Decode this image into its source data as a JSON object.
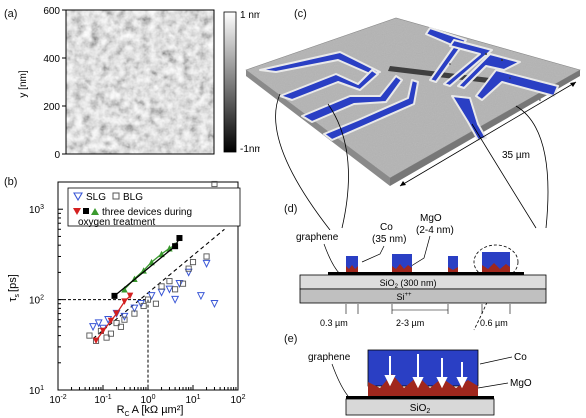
{
  "panels": {
    "a": {
      "label": "(a)",
      "ylabel": "y [nm]",
      "yticks": [
        "600",
        "400",
        "200",
        "0"
      ],
      "colorbar": {
        "top": "1 nm",
        "bottom": "-1nm"
      }
    },
    "b": {
      "label": "(b)",
      "ylabel_main": "τ",
      "ylabel_sub": "s",
      "ylabel_unit": "[ps]",
      "xlabel_main": "R",
      "xlabel_sub": "C",
      "xlabel_rest": "A [kΩ µm²]",
      "ytick_labels": [
        {
          "base": "10",
          "exp": "1"
        },
        {
          "base": "10",
          "exp": "2"
        },
        {
          "base": "10",
          "exp": "3"
        }
      ],
      "xtick_labels": [
        {
          "base": "10",
          "exp": "-2"
        },
        {
          "base": "10",
          "exp": "-1"
        },
        {
          "base": "10",
          "exp": "0"
        },
        {
          "base": "10",
          "exp": "1"
        },
        {
          "base": "10",
          "exp": "2"
        }
      ],
      "legend": {
        "slg": "SLG",
        "blg": "BLG",
        "three_devices_line1": "three devices during",
        "three_devices_line2": "oxygen treatment"
      }
    },
    "c": {
      "label": "(c)",
      "scale": "35 µm"
    },
    "d": {
      "label": "(d)",
      "graphene": "graphene",
      "co_line1": "Co",
      "co_line2": "(35 nm)",
      "mgo_line1": "MgO",
      "mgo_line2": "(2-4 nm)",
      "sio2": "SiO",
      "sio2_sub": "2",
      "sio2_rest": " (300 nm)",
      "si": "Si",
      "si_sup": "++",
      "dim1": "0.3 µm",
      "dim2": "2-3 µm",
      "dim3": "0.6 µm"
    },
    "e": {
      "label": "(e)",
      "graphene": "graphene",
      "co": "Co",
      "mgo": "MgO",
      "sio2": "SiO",
      "sio2_sub": "2"
    }
  },
  "colors": {
    "co_blue": "#2a3fc4",
    "mgo_red": "#a0271d",
    "slg_blue": "#3a57d6",
    "green": "#3a9a2e",
    "red": "#d42020",
    "gray_substrate": "#c8c8c8"
  },
  "chart_data": {
    "type": "scatter",
    "xscale": "log",
    "yscale": "log",
    "xlim": [
      0.01,
      100
    ],
    "ylim": [
      10,
      2000
    ],
    "xlabel": "R_C A [kΩ µm²]",
    "ylabel": "τ_s [ps]",
    "reference_lines": {
      "x": 1,
      "y": 100
    },
    "series": [
      {
        "name": "SLG",
        "marker": "triangle-down-open",
        "color": "#3a57d6",
        "x": [
          0.06,
          0.08,
          0.1,
          0.13,
          0.2,
          0.3,
          0.5,
          0.7,
          1.2,
          2,
          3,
          4,
          5,
          8,
          15,
          20,
          30
        ],
        "y": [
          50,
          55,
          48,
          60,
          70,
          65,
          80,
          90,
          110,
          120,
          130,
          100,
          150,
          200,
          110,
          250,
          90
        ]
      },
      {
        "name": "BLG",
        "marker": "square-open",
        "color": "#555555",
        "x": [
          0.05,
          0.07,
          0.09,
          0.12,
          0.15,
          0.2,
          0.25,
          0.3,
          0.5,
          0.8,
          1,
          1.5,
          2,
          3,
          4,
          6,
          8,
          10,
          20,
          30,
          40
        ],
        "y": [
          40,
          35,
          45,
          38,
          42,
          55,
          50,
          60,
          70,
          85,
          100,
          90,
          140,
          160,
          130,
          150,
          220,
          260,
          300,
          1900,
          900
        ]
      },
      {
        "name": "three devices during oxygen treatment (red)",
        "marker": "triangle-down-filled",
        "color": "#d42020",
        "x": [
          0.07,
          0.1,
          0.15,
          0.2,
          0.3,
          0.4
        ],
        "y": [
          35,
          45,
          58,
          70,
          95,
          110
        ]
      },
      {
        "name": "three devices during oxygen treatment (green)",
        "marker": "triangle-up-filled",
        "color": "#3a9a2e",
        "x": [
          0.3,
          0.5,
          0.8,
          1.2,
          2,
          3,
          4
        ],
        "y": [
          130,
          170,
          210,
          260,
          320,
          370,
          400
        ]
      },
      {
        "name": "three devices during oxygen treatment (black)",
        "marker": "square-filled",
        "color": "#000000",
        "x": [
          0.18,
          4,
          5
        ],
        "y": [
          110,
          390,
          480
        ]
      }
    ],
    "fit_line": {
      "x": [
        0.06,
        50
      ],
      "y": [
        37,
        600
      ]
    }
  }
}
